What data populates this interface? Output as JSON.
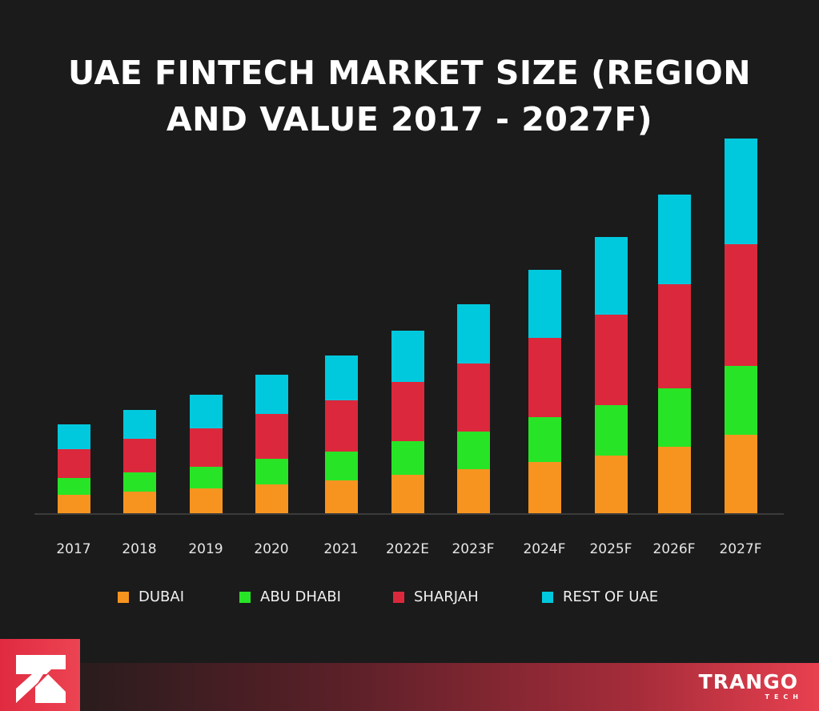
{
  "header": {
    "title_line1": "UAE FINTECH MARKET SIZE (REGION",
    "title_line2": "AND VALUE 2017 - 2027F)"
  },
  "colors": {
    "background": "#1b1b1b",
    "dubai": "#f7941f",
    "abu_dhabi": "#27e526",
    "sharjah": "#dc283c",
    "rest_of_uae": "#00c9de",
    "baseline": "#3b3b3b"
  },
  "legend": {
    "items": [
      {
        "label": "DUBAI",
        "color": "#f7941f"
      },
      {
        "label": "ABU DHABI",
        "color": "#27e526"
      },
      {
        "label": "SHARJAH",
        "color": "#dc283c"
      },
      {
        "label": "REST OF UAE",
        "color": "#00c9de"
      }
    ]
  },
  "chart_data": {
    "type": "bar",
    "stacked": true,
    "title": "UAE FINTECH MARKET SIZE (REGION AND VALUE 2017 - 2027F)",
    "xlabel": "",
    "ylabel": "",
    "units": "relative (no y-axis shown; values estimated from bar pixel heights)",
    "categories": [
      "2017",
      "2018",
      "2019",
      "2020",
      "2021",
      "2022E",
      "2023F",
      "2024F",
      "2025F",
      "2026F",
      "2027F"
    ],
    "series": [
      {
        "name": "DUBAI",
        "color": "#f7941f",
        "values": [
          23,
          27,
          31,
          36,
          41,
          48,
          55,
          64,
          72,
          83,
          98
        ]
      },
      {
        "name": "ABU DHABI",
        "color": "#27e526",
        "values": [
          21,
          24,
          27,
          32,
          36,
          42,
          47,
          56,
          63,
          73,
          86
        ]
      },
      {
        "name": "SHARJAH",
        "color": "#dc283c",
        "values": [
          36,
          42,
          48,
          56,
          64,
          74,
          85,
          99,
          113,
          130,
          152
        ]
      },
      {
        "name": "REST OF UAE",
        "color": "#00c9de",
        "values": [
          31,
          36,
          42,
          49,
          56,
          64,
          74,
          85,
          97,
          112,
          132
        ]
      }
    ],
    "ylim": [
      0,
      470
    ],
    "grid": false,
    "legend_position": "bottom"
  },
  "footer": {
    "brand_name": "TRANGO",
    "brand_sub": "TECH"
  }
}
